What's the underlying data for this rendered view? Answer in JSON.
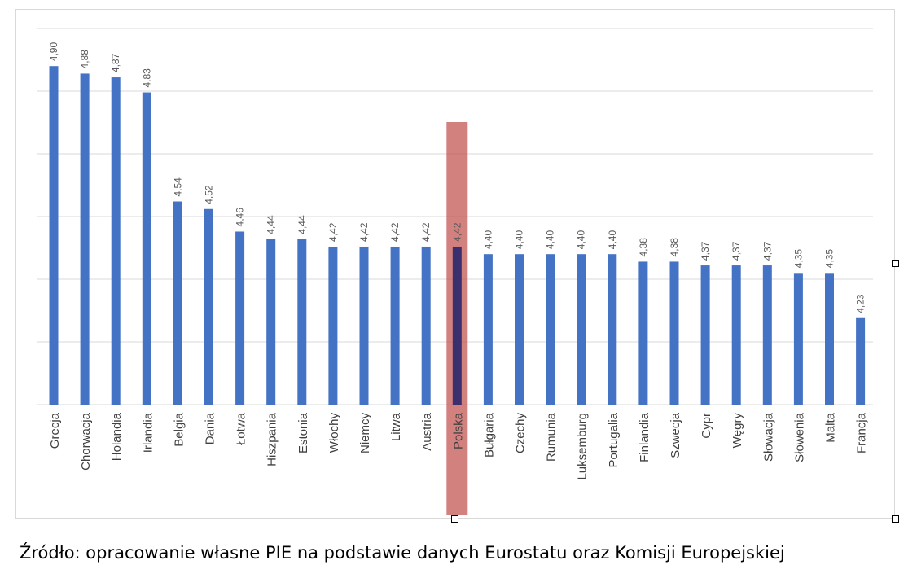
{
  "chart_data": {
    "type": "bar",
    "categories": [
      "Grecja",
      "Chorwacja",
      "Holandia",
      "Irlandia",
      "Belgia",
      "Dania",
      "Łotwa",
      "Hiszpania",
      "Estonia",
      "Włochy",
      "Niemcy",
      "Litwa",
      "Austria",
      "Polska",
      "Bułgaria",
      "Czechy",
      "Rumunia",
      "Luksemburg",
      "Portugalia",
      "Finlandia",
      "Szwecja",
      "Cypr",
      "Węgry",
      "Słowacja",
      "Słowenia",
      "Malta",
      "Francja"
    ],
    "values": [
      4.9,
      4.88,
      4.87,
      4.83,
      4.54,
      4.52,
      4.46,
      4.44,
      4.44,
      4.42,
      4.42,
      4.42,
      4.42,
      4.42,
      4.4,
      4.4,
      4.4,
      4.4,
      4.4,
      4.38,
      4.38,
      4.37,
      4.37,
      4.37,
      4.35,
      4.35,
      4.23
    ],
    "data_labels": [
      "4,90",
      "4,88",
      "4,87",
      "4,83",
      "4,54",
      "4,52",
      "4,46",
      "4,44",
      "4,44",
      "4,42",
      "4,42",
      "4,42",
      "4,42",
      "4,42",
      "4,40",
      "4,40",
      "4,40",
      "4,40",
      "4,40",
      "4,38",
      "4,38",
      "4,37",
      "4,37",
      "4,37",
      "4,35",
      "4,35",
      "4,23"
    ],
    "ylim": [
      4.0,
      5.0
    ],
    "grid": true,
    "highlight_category": "Polska",
    "colors": {
      "bar": "#4472c4",
      "highlight": "#c0504d",
      "grid": "#d9d9d9",
      "label": "#595959"
    }
  },
  "source_note": "Źródło: opracowanie własne PIE na podstawie danych Eurostatu oraz Komisji Europejskiej"
}
